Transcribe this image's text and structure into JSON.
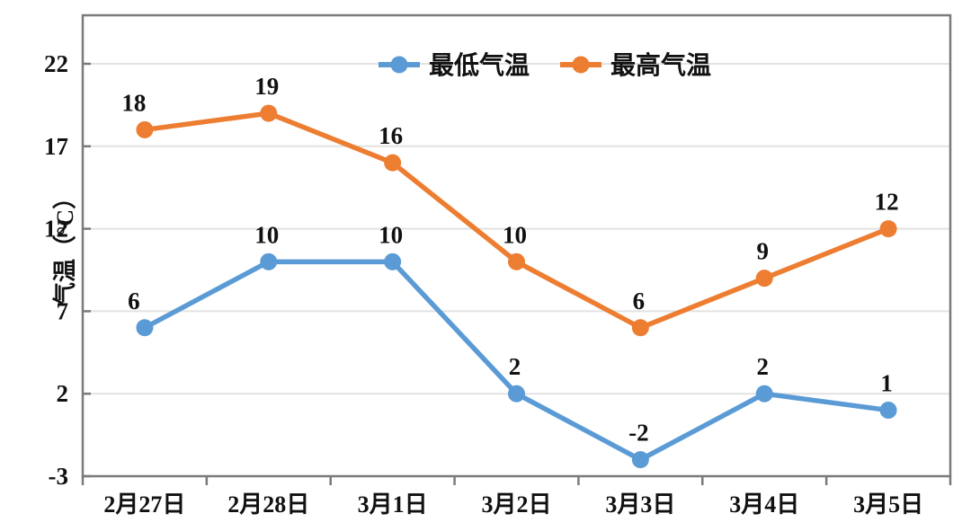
{
  "chart_data": {
    "type": "line",
    "title": "",
    "categories": [
      "2月27日",
      "2月28日",
      "3月1日",
      "3月2日",
      "3月3日",
      "3月4日",
      "3月5日"
    ],
    "series": [
      {
        "name": "最低气温",
        "color": "#5B9BD5",
        "values": [
          6,
          10,
          10,
          2,
          -2,
          2,
          1
        ]
      },
      {
        "name": "最高气温",
        "color": "#ED7D31",
        "values": [
          18,
          19,
          16,
          10,
          6,
          9,
          12
        ]
      }
    ],
    "xlabel": "",
    "ylabel": "气温（°C）",
    "yticks": [
      -3,
      2,
      7,
      12,
      17,
      22
    ],
    "ylim": [
      -3,
      22
    ],
    "grid": true,
    "legend_position": "top-center",
    "data_labels": true
  },
  "colors": {
    "background": "#ffffff",
    "frame": "#7a7a7a",
    "gridline": "#e2e2e2",
    "tick": "#7a7a7a",
    "text": "#111111"
  }
}
